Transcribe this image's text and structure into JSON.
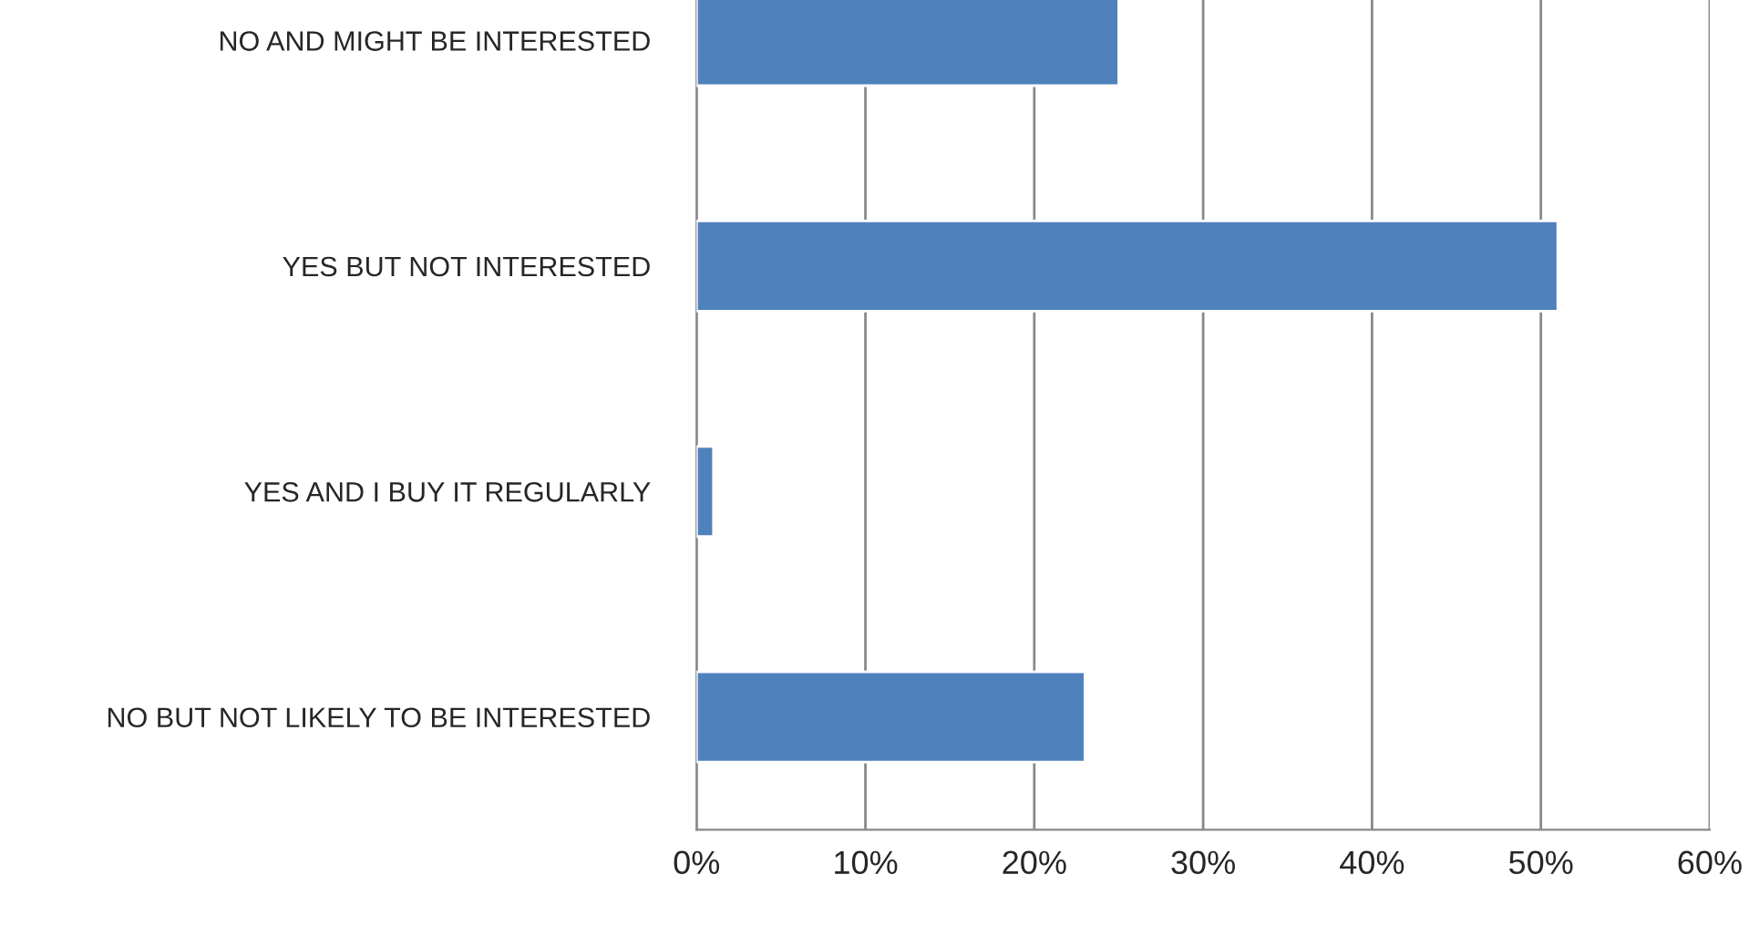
{
  "chart_data": {
    "type": "bar",
    "orientation": "horizontal",
    "categories": [
      "NO AND MIGHT BE INTERESTED",
      "YES BUT NOT INTERESTED",
      "YES AND I BUY IT REGULARLY",
      "NO BUT NOT LIKELY TO BE INTERESTED"
    ],
    "values": [
      25,
      51,
      1,
      23
    ],
    "color": "#4f81bd",
    "xlim": [
      0,
      60
    ],
    "xticks": [
      {
        "value": 0,
        "label": "0%"
      },
      {
        "value": 10,
        "label": "10%"
      },
      {
        "value": 20,
        "label": "20%"
      },
      {
        "value": 30,
        "label": "30%"
      },
      {
        "value": 40,
        "label": "40%"
      },
      {
        "value": 50,
        "label": "50%"
      },
      {
        "value": 60,
        "label": "60%"
      }
    ],
    "grid": "x",
    "legend": false
  }
}
